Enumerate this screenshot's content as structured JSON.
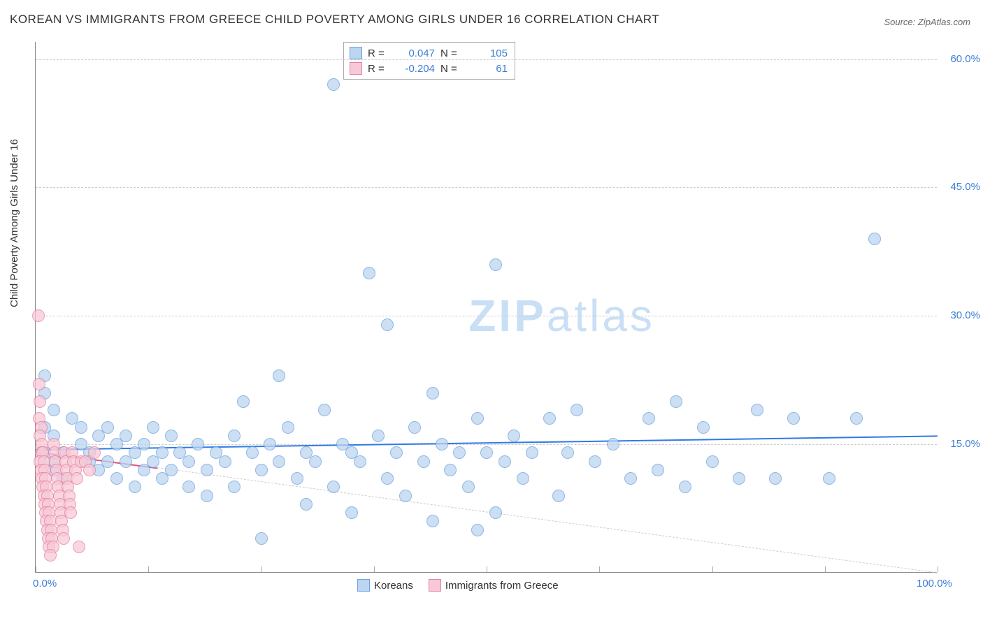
{
  "title": "KOREAN VS IMMIGRANTS FROM GREECE CHILD POVERTY AMONG GIRLS UNDER 16 CORRELATION CHART",
  "source": "Source: ZipAtlas.com",
  "ylabel": "Child Poverty Among Girls Under 16",
  "watermark": {
    "prefix": "ZIP",
    "suffix": "atlas",
    "color": "#c9dff5",
    "fontsize": 64
  },
  "chart": {
    "type": "scatter",
    "background_color": "#ffffff",
    "grid_color": "#cccccc",
    "axis_color": "#888888",
    "tick_label_color": "#3b7dd8",
    "tick_label_fontsize": 15,
    "xlim": [
      0,
      100
    ],
    "ylim": [
      0,
      62
    ],
    "xticks": [
      0,
      12.5,
      25,
      37.5,
      50,
      62.5,
      75,
      87.5,
      100
    ],
    "xtick_labels": {
      "0": "0.0%",
      "100": "100.0%"
    },
    "yticks": [
      15,
      30,
      45,
      60
    ],
    "ytick_labels": {
      "15": "15.0%",
      "30": "30.0%",
      "45": "45.0%",
      "60": "60.0%"
    },
    "marker_radius": 9,
    "marker_border_width": 1.2,
    "series": [
      {
        "name": "Koreans",
        "fill": "#bcd5f0",
        "stroke": "#6aa0de",
        "fill_opacity": 0.75,
        "R": "0.047",
        "N": "105",
        "trend": {
          "y_at_x0": 14.4,
          "y_at_x100": 16.0,
          "color": "#2f7ae5",
          "width": 2
        },
        "points": [
          [
            1,
            23
          ],
          [
            1,
            21
          ],
          [
            2,
            19
          ],
          [
            1,
            17
          ],
          [
            2,
            16
          ],
          [
            1,
            14
          ],
          [
            3,
            14
          ],
          [
            2,
            13
          ],
          [
            2,
            12
          ],
          [
            3,
            11
          ],
          [
            4,
            18
          ],
          [
            5,
            17
          ],
          [
            5,
            15
          ],
          [
            6,
            14
          ],
          [
            6,
            13
          ],
          [
            7,
            16
          ],
          [
            7,
            12
          ],
          [
            8,
            17
          ],
          [
            8,
            13
          ],
          [
            9,
            15
          ],
          [
            9,
            11
          ],
          [
            10,
            16
          ],
          [
            10,
            13
          ],
          [
            11,
            14
          ],
          [
            11,
            10
          ],
          [
            12,
            15
          ],
          [
            12,
            12
          ],
          [
            13,
            17
          ],
          [
            13,
            13
          ],
          [
            14,
            14
          ],
          [
            14,
            11
          ],
          [
            15,
            16
          ],
          [
            15,
            12
          ],
          [
            16,
            14
          ],
          [
            17,
            13
          ],
          [
            17,
            10
          ],
          [
            18,
            15
          ],
          [
            19,
            12
          ],
          [
            19,
            9
          ],
          [
            20,
            14
          ],
          [
            21,
            13
          ],
          [
            22,
            16
          ],
          [
            22,
            10
          ],
          [
            23,
            20
          ],
          [
            24,
            14
          ],
          [
            25,
            12
          ],
          [
            25,
            4
          ],
          [
            26,
            15
          ],
          [
            27,
            23
          ],
          [
            27,
            13
          ],
          [
            28,
            17
          ],
          [
            29,
            11
          ],
          [
            30,
            14
          ],
          [
            30,
            8
          ],
          [
            31,
            13
          ],
          [
            32,
            19
          ],
          [
            33,
            10
          ],
          [
            33,
            57
          ],
          [
            34,
            15
          ],
          [
            35,
            7
          ],
          [
            35,
            14
          ],
          [
            37,
            35
          ],
          [
            36,
            13
          ],
          [
            38,
            16
          ],
          [
            39,
            29
          ],
          [
            39,
            11
          ],
          [
            40,
            14
          ],
          [
            41,
            9
          ],
          [
            42,
            17
          ],
          [
            43,
            13
          ],
          [
            44,
            21
          ],
          [
            44,
            6
          ],
          [
            45,
            15
          ],
          [
            46,
            12
          ],
          [
            47,
            14
          ],
          [
            48,
            10
          ],
          [
            49,
            18
          ],
          [
            49,
            5
          ],
          [
            50,
            14
          ],
          [
            51,
            36
          ],
          [
            51,
            7
          ],
          [
            52,
            13
          ],
          [
            53,
            16
          ],
          [
            54,
            11
          ],
          [
            55,
            14
          ],
          [
            57,
            18
          ],
          [
            58,
            9
          ],
          [
            59,
            14
          ],
          [
            60,
            19
          ],
          [
            62,
            13
          ],
          [
            64,
            15
          ],
          [
            66,
            11
          ],
          [
            68,
            18
          ],
          [
            69,
            12
          ],
          [
            71,
            20
          ],
          [
            72,
            10
          ],
          [
            74,
            17
          ],
          [
            75,
            13
          ],
          [
            78,
            11
          ],
          [
            80,
            19
          ],
          [
            82,
            11
          ],
          [
            84,
            18
          ],
          [
            88,
            11
          ],
          [
            93,
            39
          ],
          [
            91,
            18
          ]
        ]
      },
      {
        "name": "Immigrants from Greece",
        "fill": "#f7c9d6",
        "stroke": "#e87da0",
        "fill_opacity": 0.75,
        "R": "-0.204",
        "N": "61",
        "trend": {
          "y_at_x0": 14.2,
          "y_at_x100": 0.0,
          "end_x": 13.5,
          "color": "#e2547f",
          "width": 2,
          "dashed_extension": true
        },
        "points": [
          [
            0.3,
            30
          ],
          [
            0.4,
            22
          ],
          [
            0.5,
            20
          ],
          [
            0.4,
            18
          ],
          [
            0.6,
            17
          ],
          [
            0.5,
            16
          ],
          [
            0.7,
            15
          ],
          [
            0.6,
            14
          ],
          [
            0.8,
            14
          ],
          [
            0.5,
            13
          ],
          [
            0.9,
            13
          ],
          [
            0.6,
            12
          ],
          [
            1.0,
            12
          ],
          [
            0.7,
            11
          ],
          [
            1.1,
            11
          ],
          [
            0.8,
            10
          ],
          [
            1.2,
            10
          ],
          [
            0.9,
            9
          ],
          [
            1.3,
            9
          ],
          [
            1.0,
            8
          ],
          [
            1.4,
            8
          ],
          [
            1.1,
            7
          ],
          [
            1.5,
            7
          ],
          [
            1.2,
            6
          ],
          [
            1.6,
            6
          ],
          [
            1.3,
            5
          ],
          [
            1.7,
            5
          ],
          [
            1.4,
            4
          ],
          [
            1.8,
            4
          ],
          [
            1.5,
            3
          ],
          [
            1.9,
            3
          ],
          [
            1.6,
            2
          ],
          [
            2.0,
            15
          ],
          [
            2.1,
            14
          ],
          [
            2.2,
            13
          ],
          [
            2.3,
            12
          ],
          [
            2.4,
            11
          ],
          [
            2.5,
            10
          ],
          [
            2.6,
            9
          ],
          [
            2.7,
            8
          ],
          [
            2.8,
            7
          ],
          [
            2.9,
            6
          ],
          [
            3.0,
            5
          ],
          [
            3.1,
            4
          ],
          [
            3.2,
            14
          ],
          [
            3.3,
            13
          ],
          [
            3.4,
            12
          ],
          [
            3.5,
            11
          ],
          [
            3.6,
            10
          ],
          [
            3.7,
            9
          ],
          [
            3.8,
            8
          ],
          [
            3.9,
            7
          ],
          [
            4.0,
            14
          ],
          [
            4.2,
            13
          ],
          [
            4.4,
            12
          ],
          [
            4.6,
            11
          ],
          [
            4.8,
            3
          ],
          [
            5.0,
            13
          ],
          [
            5.5,
            13
          ],
          [
            6.0,
            12
          ],
          [
            6.5,
            14
          ]
        ]
      }
    ]
  },
  "legend": {
    "stats_labels": {
      "R": "R =",
      "N": "N ="
    },
    "bottom_items": [
      "Koreans",
      "Immigrants from Greece"
    ]
  }
}
